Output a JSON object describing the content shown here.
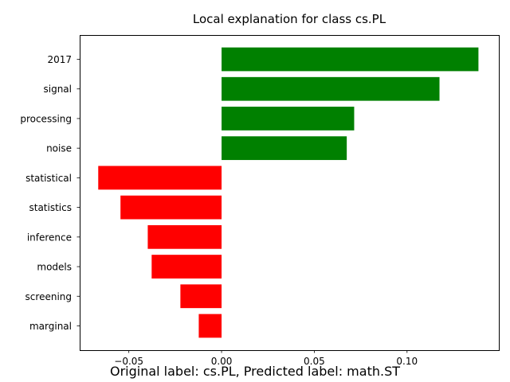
{
  "chart_data": {
    "type": "bar",
    "orientation": "horizontal",
    "title": "Local explanation for class cs.PL",
    "xlabel": "",
    "ylabel": "",
    "categories": [
      "2017",
      "signal",
      "processing",
      "noise",
      "statistical",
      "statistics",
      "inference",
      "models",
      "screening",
      "marginal"
    ],
    "values": [
      0.1385,
      0.1175,
      0.0715,
      0.0675,
      -0.0665,
      -0.0545,
      -0.0398,
      -0.0377,
      -0.0222,
      -0.0123
    ],
    "xlim": [
      -0.0765,
      0.1495
    ],
    "xticks": [
      -0.05,
      0.0,
      0.05,
      0.1
    ],
    "xtick_labels": [
      "−0.05",
      "0.00",
      "0.05",
      "0.10"
    ],
    "grid": false,
    "colors": {
      "positive": "#008000",
      "negative": "#ff0000"
    }
  },
  "caption": "Original label: cs.PL, Predicted label: math.ST"
}
